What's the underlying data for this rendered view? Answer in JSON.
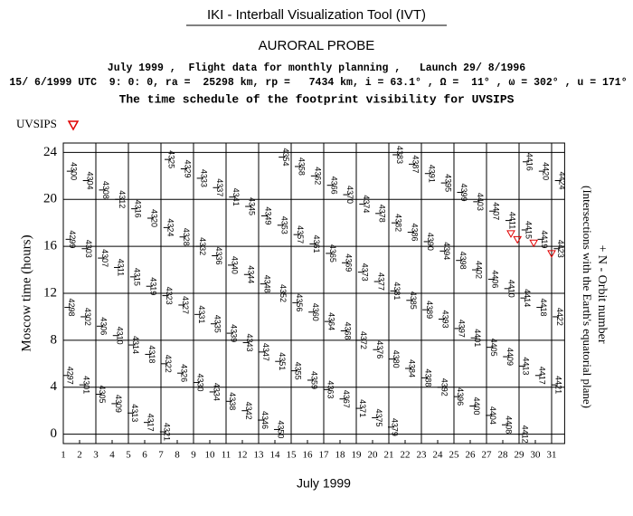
{
  "chart_data": {
    "type": "scatter",
    "title": "IKI - Interball Visualization Tool (IVT)",
    "subtitle": "AURORAL PROBE",
    "info_lines": [
      "July 1999 ,  Flight data for monthly planning ,   Launch 29/ 8/1996",
      "15/ 6/1999 UTC  9: 0: 0, ra =  25298 km, rp =   7434 km, i = 63.1° , Ω =  11° , ω = 302° , u = 171°",
      "The time schedule of the footprint visibility for UVSIPS"
    ],
    "x_label": "July 1999",
    "y_label": "Moscow time (hours)",
    "y2_label": "+ N - Orbit number",
    "y2_sublabel": "(Intersections with the Earth's equatorial plane)",
    "xlim": [
      1,
      31.8
    ],
    "ylim": [
      -0.8,
      24.8
    ],
    "xticks": [
      1,
      2,
      3,
      4,
      5,
      6,
      7,
      8,
      9,
      10,
      11,
      12,
      13,
      14,
      15,
      16,
      17,
      18,
      19,
      20,
      21,
      22,
      23,
      24,
      25,
      26,
      27,
      28,
      29,
      30,
      31
    ],
    "yticks": [
      0,
      4,
      8,
      12,
      16,
      20,
      24
    ],
    "grid": true,
    "x": [
      1.16,
      1.24,
      1.31,
      1.38,
      2.15,
      2.23,
      2.3,
      2.37,
      3.14,
      3.22,
      3.29,
      3.36,
      4.13,
      4.21,
      4.28,
      4.35,
      5.12,
      5.2,
      5.27,
      5.34,
      6.11,
      6.19,
      6.26,
      6.33,
      7.1,
      7.18,
      7.25,
      7.32,
      7.39,
      8.17,
      8.24,
      8.31,
      8.38,
      9.16,
      9.23,
      9.3,
      9.37,
      10.15,
      10.22,
      10.29,
      10.36,
      11.14,
      11.21,
      11.28,
      11.35,
      12.13,
      12.2,
      12.27,
      12.34,
      13.12,
      13.19,
      13.26,
      13.33,
      14.11,
      14.18,
      14.25,
      14.32,
      14.4,
      15.17,
      15.24,
      15.31,
      15.39,
      16.16,
      16.23,
      16.3,
      16.38,
      17.15,
      17.22,
      17.29,
      17.37,
      18.14,
      18.21,
      18.28,
      18.36,
      19.13,
      19.2,
      19.27,
      19.35,
      20.12,
      20.19,
      20.26,
      20.34,
      21.11,
      21.18,
      21.25,
      21.33,
      21.4,
      22.17,
      22.24,
      22.32,
      22.39,
      23.16,
      23.23,
      23.31,
      23.38,
      24.15,
      24.22,
      24.3,
      24.37,
      25.14,
      25.21,
      25.29,
      25.36,
      26.13,
      26.2,
      26.28,
      26.35,
      27.12,
      27.19,
      27.27,
      27.34,
      28.11,
      28.18,
      28.26,
      28.33,
      29.1,
      29.17,
      29.25,
      29.32,
      29.39,
      30.16,
      30.24,
      30.31,
      30.38,
      31.15,
      31.23,
      31.3,
      31.37
    ],
    "values": [
      5.0,
      10.8,
      16.6,
      22.4,
      4.2,
      10.0,
      15.8,
      21.6,
      3.4,
      9.2,
      15.0,
      20.8,
      2.6,
      8.4,
      14.2,
      20.0,
      1.8,
      7.6,
      13.4,
      19.2,
      1.0,
      6.8,
      12.6,
      18.4,
      0.2,
      6.0,
      11.8,
      17.6,
      23.4,
      5.2,
      11.0,
      16.8,
      22.6,
      4.4,
      10.2,
      16.0,
      21.8,
      3.6,
      9.4,
      15.2,
      21.0,
      2.8,
      8.6,
      14.4,
      20.2,
      2.0,
      7.8,
      13.6,
      19.4,
      1.2,
      7.0,
      12.8,
      18.6,
      0.4,
      6.2,
      12.0,
      17.8,
      23.6,
      5.4,
      11.2,
      17.0,
      22.8,
      4.6,
      10.4,
      16.2,
      22.0,
      3.8,
      9.6,
      15.4,
      21.2,
      3.0,
      8.8,
      14.6,
      20.4,
      2.2,
      8.0,
      13.8,
      19.6,
      1.4,
      7.2,
      13.0,
      18.8,
      0.6,
      6.4,
      12.2,
      18.0,
      23.8,
      5.6,
      11.4,
      17.2,
      23.0,
      4.8,
      10.6,
      16.4,
      22.2,
      4.0,
      9.8,
      15.6,
      21.4,
      3.2,
      9.0,
      14.8,
      20.6,
      2.4,
      8.2,
      14.0,
      19.8,
      1.6,
      7.4,
      13.2,
      19.0,
      0.8,
      6.6,
      12.4,
      18.2,
      0.0,
      5.8,
      11.6,
      17.4,
      23.2,
      5.0,
      10.8,
      16.6,
      22.4,
      4.2,
      10.0,
      15.8,
      21.6
    ],
    "labels": [
      4297,
      4298,
      4299,
      4300,
      4301,
      4302,
      4303,
      4304,
      4305,
      4306,
      4307,
      4308,
      4309,
      4310,
      4311,
      4312,
      4313,
      4314,
      4315,
      4316,
      4317,
      4318,
      4319,
      4320,
      4321,
      4322,
      4323,
      4324,
      4325,
      4326,
      4327,
      4328,
      4329,
      4330,
      4331,
      4332,
      4333,
      4334,
      4335,
      4336,
      4337,
      4338,
      4339,
      4340,
      4341,
      4342,
      4343,
      4344,
      4345,
      4346,
      4347,
      4348,
      4349,
      4350,
      4351,
      4352,
      4353,
      4354,
      4355,
      4356,
      4357,
      4358,
      4359,
      4360,
      4361,
      4362,
      4363,
      4364,
      4365,
      4366,
      4367,
      4368,
      4369,
      4370,
      4371,
      4372,
      4373,
      4374,
      4375,
      4376,
      4377,
      4378,
      4379,
      4380,
      4381,
      4382,
      4383,
      4384,
      4385,
      4386,
      4387,
      4388,
      4389,
      4390,
      4391,
      4392,
      4393,
      4394,
      4395,
      4396,
      4397,
      4398,
      4399,
      4400,
      4401,
      4402,
      4403,
      4404,
      4405,
      4406,
      4407,
      4408,
      4409,
      4410,
      4411,
      4412,
      4413,
      4414,
      4415,
      4416,
      4417,
      4418,
      4419,
      4420,
      4421,
      4422,
      4423,
      4424
    ],
    "series": [
      {
        "name": "UVSIPS",
        "color": "#e00000",
        "x": [
          28.5,
          28.9,
          29.9,
          31.0
        ],
        "values": [
          17.1,
          16.6,
          16.3,
          15.4
        ]
      }
    ]
  }
}
